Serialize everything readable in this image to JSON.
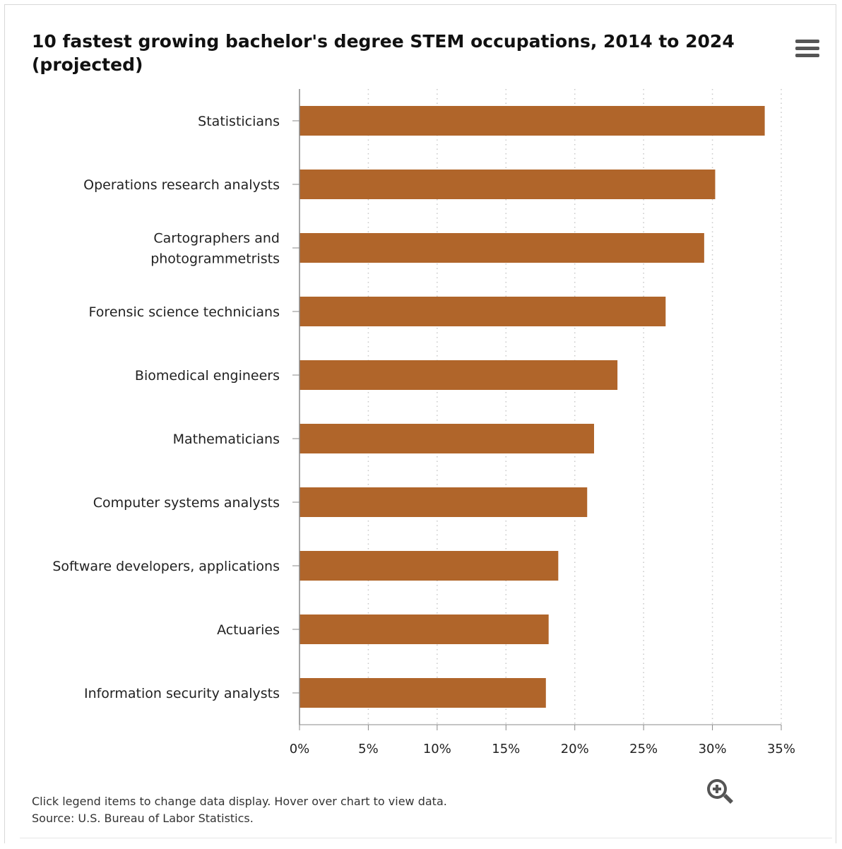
{
  "chart_data": {
    "type": "bar",
    "orientation": "horizontal",
    "title": "10 fastest growing bachelor's degree STEM occupations, 2014 to 2024 (projected)",
    "categories": [
      [
        "Statisticians"
      ],
      [
        "Operations research analysts"
      ],
      [
        "Cartographers and",
        "photogrammetrists"
      ],
      [
        "Forensic science technicians"
      ],
      [
        "Biomedical engineers"
      ],
      [
        "Mathematicians"
      ],
      [
        "Computer systems analysts"
      ],
      [
        "Software developers, applications"
      ],
      [
        "Actuaries"
      ],
      [
        "Information security analysts"
      ]
    ],
    "values": [
      33.8,
      30.2,
      29.4,
      26.6,
      23.1,
      21.4,
      20.9,
      18.8,
      18.1,
      17.9
    ],
    "xlim": [
      0,
      35
    ],
    "x_ticks": [
      0,
      5,
      10,
      15,
      20,
      25,
      30,
      35
    ],
    "x_tick_labels": [
      "0%",
      "5%",
      "10%",
      "15%",
      "20%",
      "25%",
      "30%",
      "35%"
    ],
    "xlabel": "",
    "ylabel": "",
    "grid": "vertical dotted",
    "bar_color": "#b0652a"
  },
  "footer": {
    "instructions": "Click legend items to change data display. Hover over chart to view data.",
    "source": "Source: U.S. Bureau of Labor Statistics."
  },
  "icons": {
    "menu": "hamburger-menu-icon",
    "zoom": "zoom-in-icon"
  },
  "colors": {
    "bar": "#b0652a",
    "axis": "#888888",
    "grid": "#c8c8c8",
    "menu": "#555555"
  }
}
